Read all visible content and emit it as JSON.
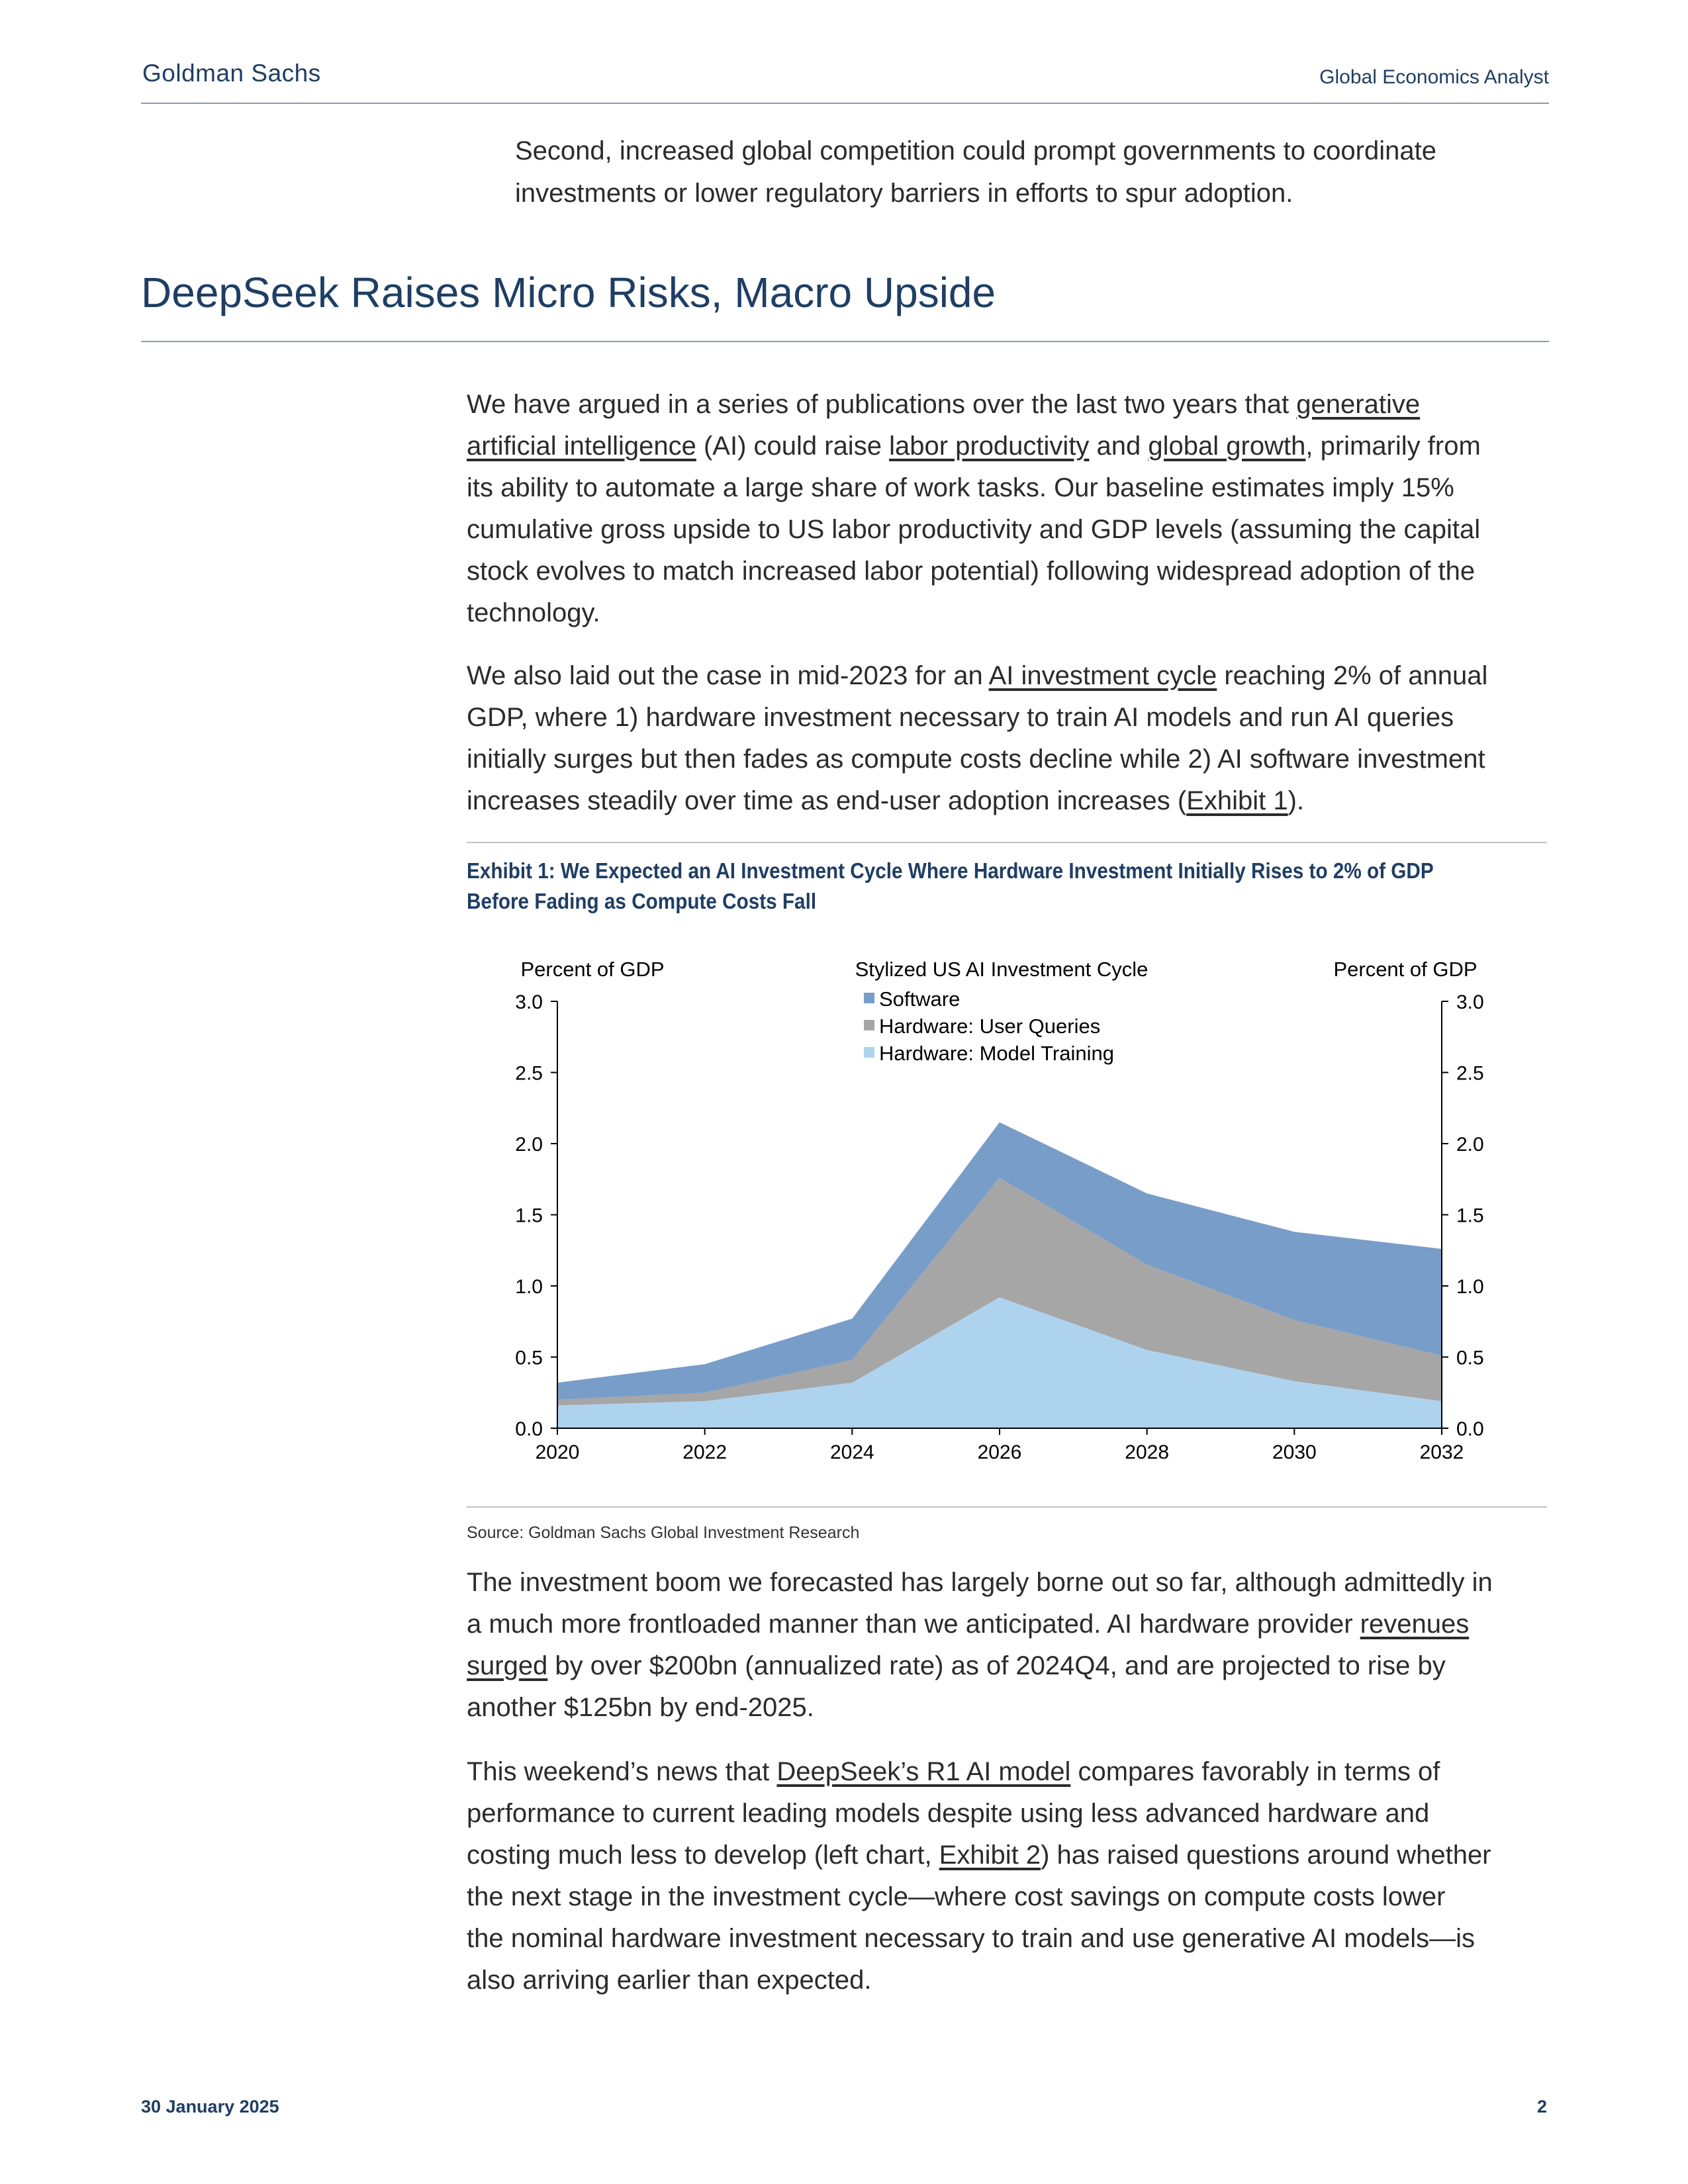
{
  "header": {
    "brand": "Goldman Sachs",
    "publication": "Global Economics Analyst"
  },
  "intro": {
    "line1": "Second, increased global competition could prompt governments to coordinate",
    "line2": "investments or lower regulatory barriers in efforts to spur adoption."
  },
  "section": {
    "title": "DeepSeek Raises Micro Risks, Macro Upside"
  },
  "para1": {
    "l1a": "We have argued in a series of publications over the last two years that ",
    "l1link": "generative ",
    "l2link": "artificial intelligence",
    "l2b": " (AI) could raise ",
    "l2link2": "labor productivity",
    "l2c": " and ",
    "l2link3": "global growth",
    "l2d": ", primarily from",
    "l3": "its ability to automate a large share of work tasks. Our baseline estimates imply 15%",
    "l4": "cumulative gross upside to US labor productivity and GDP levels (assuming the capital",
    "l5": "stock evolves to match increased labor potential) following widespread adoption of the",
    "l6": "technology."
  },
  "para2": {
    "l1a": "We also laid out the case in mid-2023 for an ",
    "l1link": "AI investment cycle",
    "l1b": " reaching 2% of annual",
    "l2": "GDP, where 1) hardware investment necessary to train AI models and run AI queries",
    "l3": "initially surges but then fades as compute costs decline while 2) AI software investment",
    "l4a": "increases steadily over time as end-user adoption increases (",
    "l4link": "Exhibit 1",
    "l4b": ")."
  },
  "exhibit": {
    "title_line1": "Exhibit 1: We Expected an AI Investment Cycle Where Hardware Investment Initially Rises to 2% of GDP",
    "title_line2": "Before Fading as Compute Costs Fall",
    "source": "Source: Goldman Sachs Global Investment Research"
  },
  "chart_data": {
    "type": "area",
    "title": "Stylized US AI Investment Cycle",
    "ylabel_left": "Percent of GDP",
    "ylabel_right": "Percent of GDP",
    "ylim": [
      0,
      3
    ],
    "y_ticks": [
      "0.0",
      "0.5",
      "1.0",
      "1.5",
      "2.0",
      "2.5",
      "3.0"
    ],
    "x": [
      2020,
      2022,
      2024,
      2026,
      2028,
      2030,
      2032
    ],
    "x_ticks": [
      "2020",
      "2022",
      "2024",
      "2026",
      "2028",
      "2030",
      "2032"
    ],
    "stacked": true,
    "legend_position": "top-center",
    "series": [
      {
        "name": "Hardware: Model Training",
        "color": "#aed3ef",
        "values": [
          0.16,
          0.19,
          0.32,
          0.92,
          0.55,
          0.33,
          0.19
        ]
      },
      {
        "name": "Hardware: User Queries",
        "color": "#a6a6a6",
        "values": [
          0.04,
          0.06,
          0.16,
          0.84,
          0.6,
          0.43,
          0.32
        ]
      },
      {
        "name": "Software",
        "color": "#789dc9",
        "values": [
          0.12,
          0.2,
          0.29,
          0.39,
          0.5,
          0.62,
          0.75
        ]
      }
    ]
  },
  "para3": {
    "l1": "The investment boom we forecasted has largely borne out so far, although admittedly in",
    "l2a": "a much more frontloaded manner than we anticipated.  AI hardware provider ",
    "l2link": "revenues ",
    "l3link": "surged",
    "l3b": " by over $200bn (annualized rate) as of 2024Q4, and are projected to rise by",
    "l4": "another $125bn by end-2025."
  },
  "para4": {
    "l1a": "This weekend’s news that ",
    "l1link": "DeepSeek’s R1 AI model",
    "l1b": " compares favorably in terms of",
    "l2": "performance to current leading models despite using less advanced hardware and",
    "l3a": "costing much less to develop (left chart, ",
    "l3link": "Exhibit 2",
    "l3b": ") has raised questions around whether",
    "l4": "the next stage in the investment cycle—where cost savings on compute costs lower",
    "l5": "the nominal hardware investment necessary to train and use generative AI models—is",
    "l6": "also arriving earlier than expected."
  },
  "footer": {
    "date": "30 January 2025",
    "page": "2"
  }
}
